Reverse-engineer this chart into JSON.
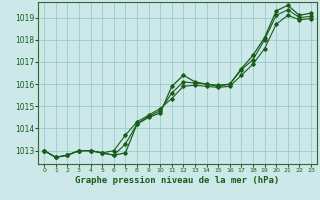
{
  "title": "Graphe pression niveau de la mer (hPa)",
  "bg_color": "#cce8e8",
  "grid_color": "#99cccc",
  "line_color": "#1a5c1a",
  "spine_color": "#336633",
  "xlim": [
    -0.5,
    23.5
  ],
  "ylim": [
    1012.4,
    1019.7
  ],
  "yticks": [
    1013,
    1014,
    1015,
    1016,
    1017,
    1018,
    1019
  ],
  "xticks": [
    0,
    1,
    2,
    3,
    4,
    5,
    6,
    7,
    8,
    9,
    10,
    11,
    12,
    13,
    14,
    15,
    16,
    17,
    18,
    19,
    20,
    21,
    22,
    23
  ],
  "series1": [
    1013.0,
    1012.7,
    1012.8,
    1013.0,
    1013.0,
    1012.9,
    1012.8,
    1012.9,
    1014.2,
    1014.5,
    1014.7,
    1015.9,
    1016.4,
    1016.1,
    1016.0,
    1015.9,
    1016.0,
    1016.7,
    1017.3,
    1018.1,
    1019.3,
    1019.55,
    1019.1,
    1019.2
  ],
  "series2": [
    1013.0,
    1012.7,
    1012.8,
    1013.0,
    1013.0,
    1012.9,
    1012.8,
    1013.3,
    1014.2,
    1014.55,
    1014.8,
    1015.6,
    1016.1,
    1016.05,
    1016.0,
    1015.95,
    1016.0,
    1016.65,
    1017.1,
    1018.0,
    1019.1,
    1019.35,
    1019.0,
    1019.05
  ],
  "series3": [
    1013.0,
    1012.7,
    1012.8,
    1013.0,
    1013.0,
    1012.9,
    1013.0,
    1013.7,
    1014.3,
    1014.6,
    1014.9,
    1015.35,
    1015.9,
    1015.95,
    1015.9,
    1015.85,
    1015.9,
    1016.4,
    1016.9,
    1017.6,
    1018.7,
    1019.1,
    1018.9,
    1018.95
  ]
}
